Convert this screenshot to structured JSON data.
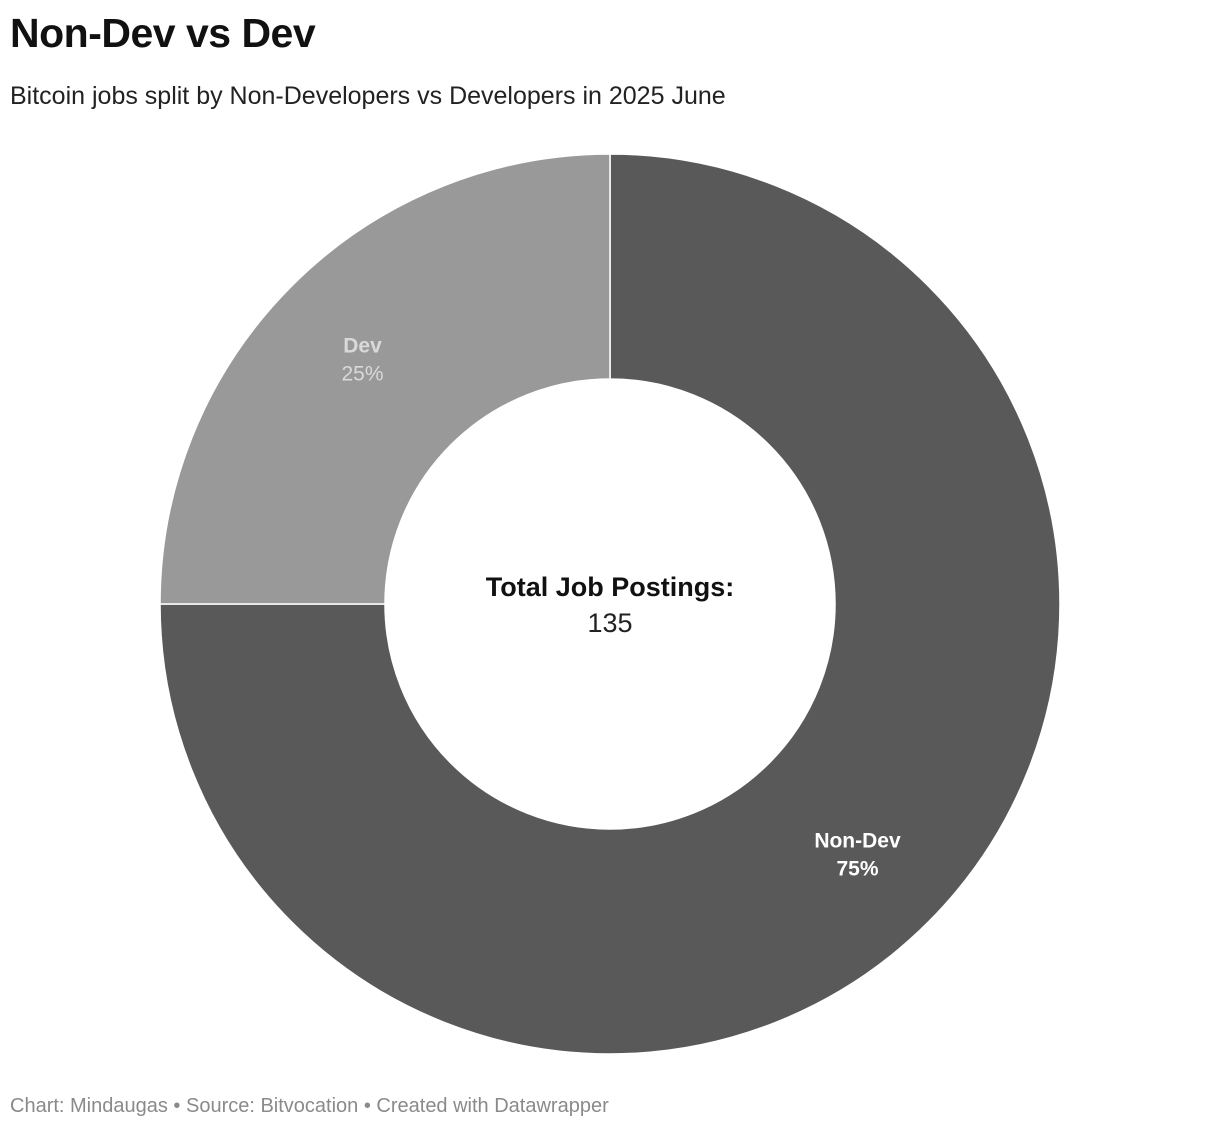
{
  "header": {
    "title": "Non-Dev vs Dev",
    "subtitle": "Bitcoin jobs split by Non-Developers vs Developers in 2025 June"
  },
  "chart_data": {
    "type": "pie",
    "variant": "donut",
    "title": "Non-Dev vs Dev",
    "subtitle": "Bitcoin jobs split by Non-Developers vs Developers in 2025 June",
    "slices": [
      {
        "label": "Non-Dev",
        "percent_label": "75%",
        "value": 75,
        "color": "#595959",
        "label_color": "#ffffff"
      },
      {
        "label": "Dev",
        "percent_label": "25%",
        "value": 25,
        "color": "#999999",
        "label_color": "#d9d9d9"
      }
    ],
    "center_label": "Total Job Postings:",
    "center_value": "135"
  },
  "footer": {
    "credit": "Chart: Mindaugas • Source: Bitvocation • Created with Datawrapper"
  }
}
